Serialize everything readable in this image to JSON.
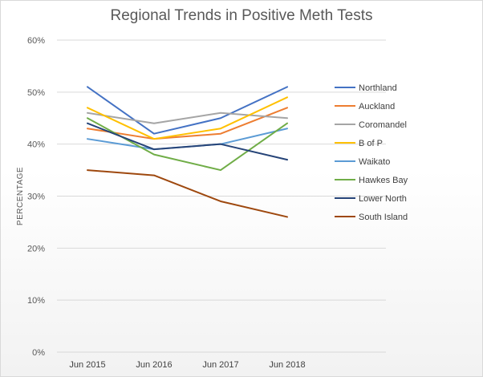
{
  "chart_data": {
    "type": "line",
    "title": "Regional Trends in Positive Meth Tests",
    "xlabel": "",
    "ylabel": "PERCENTAGE",
    "categories": [
      "Jun 2015",
      "Jun 2016",
      "Jun 2017",
      "Jun 2018"
    ],
    "ylim": [
      0,
      60
    ],
    "yticks": [
      0,
      10,
      20,
      30,
      40,
      50,
      60
    ],
    "ytick_labels": [
      "0%",
      "10%",
      "20%",
      "30%",
      "40%",
      "50%",
      "60%"
    ],
    "value_unit": "percent",
    "grid": "horizontal",
    "legend_position": "right",
    "series": [
      {
        "name": "Northland",
        "color": "#4472c4",
        "values": [
          51,
          42,
          45,
          51
        ]
      },
      {
        "name": "Auckland",
        "color": "#ed7d31",
        "values": [
          43,
          41,
          42,
          47
        ]
      },
      {
        "name": "Coromandel",
        "color": "#a5a5a5",
        "values": [
          46,
          44,
          46,
          45
        ]
      },
      {
        "name": "B of P",
        "color": "#ffc000",
        "values": [
          47,
          41,
          43,
          49
        ]
      },
      {
        "name": "Waikato",
        "color": "#5b9bd5",
        "values": [
          41,
          39,
          40,
          43
        ]
      },
      {
        "name": "Hawkes Bay",
        "color": "#70ad47",
        "values": [
          45,
          38,
          35,
          44
        ]
      },
      {
        "name": "Lower North",
        "color": "#264478",
        "values": [
          44,
          39,
          40,
          37
        ]
      },
      {
        "name": "South Island",
        "color": "#9e480e",
        "values": [
          35,
          34,
          29,
          26
        ]
      }
    ]
  }
}
